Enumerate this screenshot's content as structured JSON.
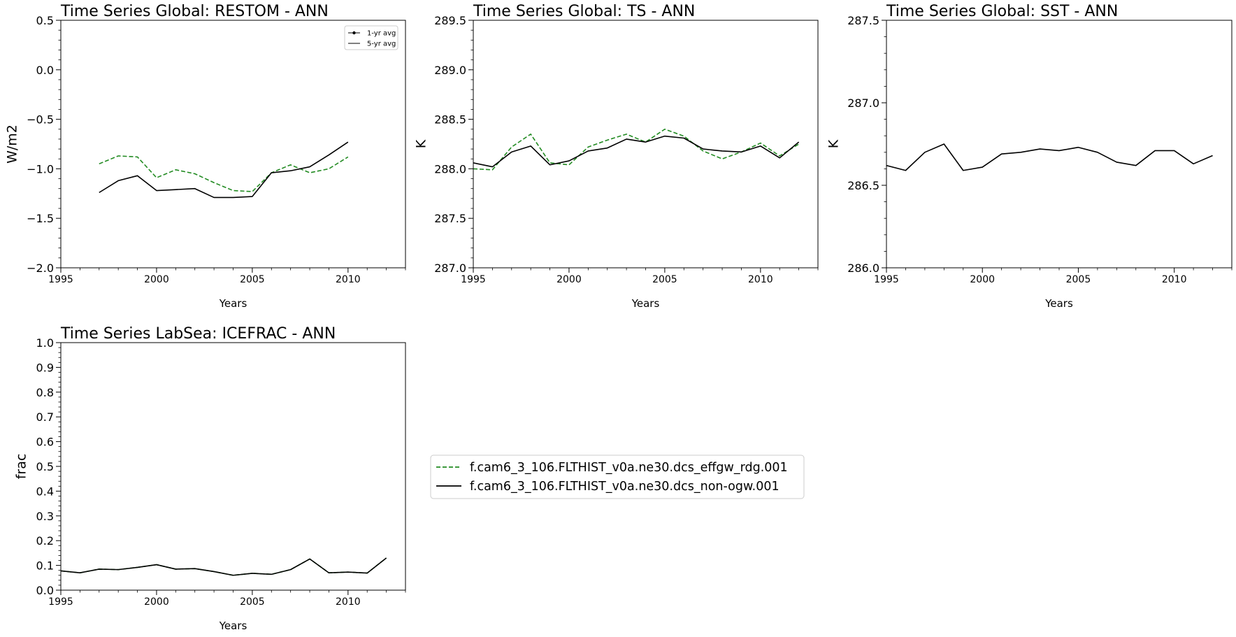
{
  "chart_data": [
    {
      "type": "line",
      "title": "Time Series Global: RESTOM - ANN",
      "xlabel": "Years",
      "ylabel": "W/m2",
      "xlim": [
        1995,
        2013
      ],
      "ylim": [
        -2.0,
        0.5
      ],
      "xticks": [
        1995,
        2000,
        2005,
        2010
      ],
      "xtick_labels": [
        "1995",
        "2000",
        "2005",
        "2010"
      ],
      "yticks": [
        -2.0,
        -1.5,
        -1.0,
        -0.5,
        0.0,
        0.5
      ],
      "ytick_labels": [
        "−2.0",
        "−1.5",
        "−1.0",
        "−0.5",
        "0.0",
        "0.5"
      ],
      "legend": {
        "placement": "upper-right",
        "entries": [
          {
            "label": "1-yr avg",
            "style": "line-marker"
          },
          {
            "label": "5-yr avg",
            "style": "line"
          }
        ]
      },
      "series": [
        {
          "color": "#228B22",
          "dash": true,
          "x": [
            1997,
            1998,
            1999,
            2000,
            2001,
            2002,
            2003,
            2004,
            2005,
            2006,
            2007,
            2008,
            2009,
            2010
          ],
          "y": [
            -0.95,
            -0.87,
            -0.88,
            -1.09,
            -1.01,
            -1.05,
            -1.14,
            -1.22,
            -1.23,
            -1.04,
            -0.96,
            -1.04,
            -1.0,
            -0.88
          ]
        },
        {
          "color": "#000000",
          "dash": false,
          "x": [
            1997,
            1998,
            1999,
            2000,
            2001,
            2002,
            2003,
            2004,
            2005,
            2006,
            2007,
            2008,
            2009,
            2010
          ],
          "y": [
            -1.24,
            -1.12,
            -1.07,
            -1.22,
            -1.21,
            -1.2,
            -1.29,
            -1.29,
            -1.28,
            -1.04,
            -1.02,
            -0.98,
            -0.86,
            -0.73
          ]
        }
      ]
    },
    {
      "type": "line",
      "title": "Time Series Global: TS - ANN",
      "xlabel": "Years",
      "ylabel": "K",
      "xlim": [
        1995,
        2013
      ],
      "ylim": [
        287.0,
        289.5
      ],
      "xticks": [
        1995,
        2000,
        2005,
        2010
      ],
      "xtick_labels": [
        "1995",
        "2000",
        "2005",
        "2010"
      ],
      "yticks": [
        287.0,
        287.5,
        288.0,
        288.5,
        289.0,
        289.5
      ],
      "ytick_labels": [
        "287.0",
        "287.5",
        "288.0",
        "288.5",
        "289.0",
        "289.5"
      ],
      "series": [
        {
          "color": "#228B22",
          "dash": true,
          "x": [
            1995,
            1996,
            1997,
            1998,
            1999,
            2000,
            2001,
            2002,
            2003,
            2004,
            2005,
            2006,
            2007,
            2008,
            2009,
            2010,
            2011,
            2012
          ],
          "y": [
            288.0,
            287.99,
            288.22,
            288.35,
            288.06,
            288.04,
            288.22,
            288.29,
            288.35,
            288.27,
            288.4,
            288.33,
            288.18,
            288.1,
            288.17,
            288.26,
            288.13,
            288.25
          ]
        },
        {
          "color": "#000000",
          "dash": false,
          "x": [
            1995,
            1996,
            1997,
            1998,
            1999,
            2000,
            2001,
            2002,
            2003,
            2004,
            2005,
            2006,
            2007,
            2008,
            2009,
            2010,
            2011,
            2012
          ],
          "y": [
            288.06,
            288.02,
            288.17,
            288.23,
            288.04,
            288.08,
            288.18,
            288.21,
            288.3,
            288.27,
            288.33,
            288.31,
            288.2,
            288.18,
            288.17,
            288.23,
            288.11,
            288.27
          ]
        }
      ]
    },
    {
      "type": "line",
      "title": "Time Series Global: SST - ANN",
      "xlabel": "Years",
      "ylabel": "K",
      "xlim": [
        1995,
        2013
      ],
      "ylim": [
        286.0,
        287.5
      ],
      "xticks": [
        1995,
        2000,
        2005,
        2010
      ],
      "xtick_labels": [
        "1995",
        "2000",
        "2005",
        "2010"
      ],
      "yticks": [
        286.0,
        286.5,
        287.0,
        287.5
      ],
      "ytick_labels": [
        "286.0",
        "286.5",
        "287.0",
        "287.5"
      ],
      "series": [
        {
          "color": "#000000",
          "dash": false,
          "x": [
            1995,
            1996,
            1997,
            1998,
            1999,
            2000,
            2001,
            2002,
            2003,
            2004,
            2005,
            2006,
            2007,
            2008,
            2009,
            2010,
            2011,
            2012
          ],
          "y": [
            286.62,
            286.59,
            286.7,
            286.75,
            286.59,
            286.61,
            286.69,
            286.7,
            286.72,
            286.71,
            286.73,
            286.7,
            286.64,
            286.62,
            286.71,
            286.71,
            286.63,
            286.68
          ]
        }
      ]
    },
    {
      "type": "line",
      "title": "Time Series LabSea: ICEFRAC - ANN",
      "xlabel": "Years",
      "ylabel": "frac",
      "xlim": [
        1995,
        2013
      ],
      "ylim": [
        0.0,
        1.0
      ],
      "xticks": [
        1995,
        2000,
        2005,
        2010
      ],
      "xtick_labels": [
        "1995",
        "2000",
        "2005",
        "2010"
      ],
      "yticks": [
        0.0,
        0.1,
        0.2,
        0.3,
        0.4,
        0.5,
        0.6,
        0.7,
        0.8,
        0.9,
        1.0
      ],
      "ytick_labels": [
        "0.0",
        "0.1",
        "0.2",
        "0.3",
        "0.4",
        "0.5",
        "0.6",
        "0.7",
        "0.8",
        "0.9",
        "1.0"
      ],
      "series": [
        {
          "color": "#228B22",
          "dash": true,
          "x": [
            1995,
            1996,
            1997,
            1998,
            1999,
            2000,
            2001,
            2002,
            2003,
            2004,
            2005,
            2006,
            2007,
            2008,
            2009,
            2010,
            2011,
            2012
          ],
          "y": [
            0.078,
            0.07,
            0.085,
            0.083,
            0.092,
            0.103,
            0.085,
            0.087,
            0.075,
            0.06,
            0.068,
            0.064,
            0.083,
            0.126,
            0.07,
            0.073,
            0.069,
            0.13
          ]
        },
        {
          "color": "#000000",
          "dash": false,
          "x": [
            1995,
            1996,
            1997,
            1998,
            1999,
            2000,
            2001,
            2002,
            2003,
            2004,
            2005,
            2006,
            2007,
            2008,
            2009,
            2010,
            2011,
            2012
          ],
          "y": [
            0.078,
            0.07,
            0.085,
            0.083,
            0.092,
            0.103,
            0.085,
            0.087,
            0.075,
            0.06,
            0.068,
            0.064,
            0.083,
            0.126,
            0.07,
            0.073,
            0.069,
            0.13
          ]
        }
      ]
    }
  ],
  "figure_legend": [
    {
      "label": "f.cam6_3_106.FLTHIST_v0a.ne30.dcs_effgw_rdg.001",
      "color": "#228B22",
      "dash": true
    },
    {
      "label": "f.cam6_3_106.FLTHIST_v0a.ne30.dcs_non-ogw.001",
      "color": "#000000",
      "dash": false
    }
  ]
}
